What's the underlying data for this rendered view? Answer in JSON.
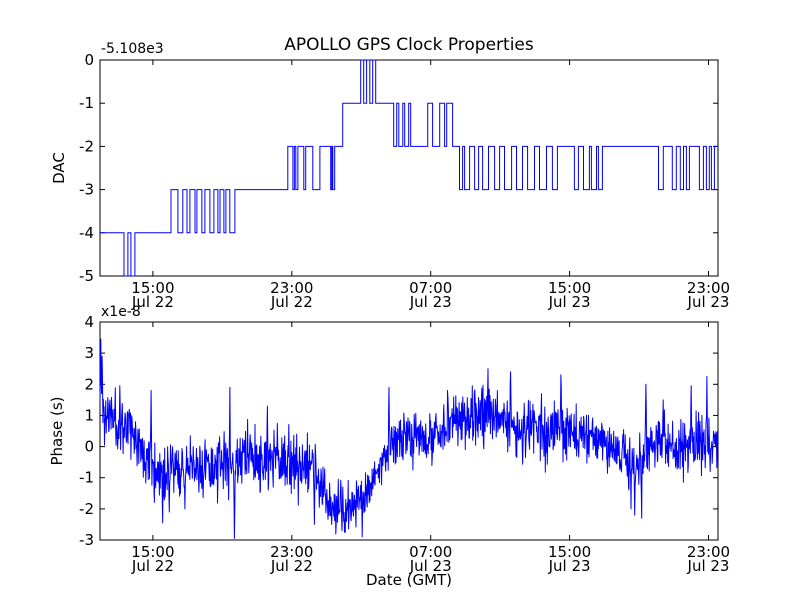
{
  "figure": {
    "background": "#ffffff",
    "axis_color": "#000000",
    "line_color": "#0000ff"
  },
  "chart_data": [
    {
      "type": "line",
      "subplot": "top",
      "title": "APOLLO GPS Clock Properties",
      "ylabel": "DAC",
      "y_offset_text": "-5.108e3",
      "line_style": "steps-post",
      "x_unit": "hours since Jul 22 00:00 GMT",
      "xlim": [
        11.95,
        47.55
      ],
      "ylim": [
        -5,
        0
      ],
      "yticks": [
        0,
        -1,
        -2,
        -3,
        -4,
        -5
      ],
      "xticks": [
        {
          "t": 15,
          "line1": "15:00",
          "line2": "Jul 22"
        },
        {
          "t": 23,
          "line1": "23:00",
          "line2": "Jul 22"
        },
        {
          "t": 31,
          "line1": "07:00",
          "line2": "Jul 23"
        },
        {
          "t": 39,
          "line1": "15:00",
          "line2": "Jul 23"
        },
        {
          "t": 47,
          "line1": "23:00",
          "line2": "Jul 23"
        }
      ],
      "steps": [
        [
          11.95,
          -4
        ],
        [
          13.33,
          -5
        ],
        [
          13.56,
          -4
        ],
        [
          13.73,
          -5
        ],
        [
          13.96,
          -4
        ],
        [
          16.04,
          -3
        ],
        [
          16.44,
          -4
        ],
        [
          16.72,
          -3
        ],
        [
          16.96,
          -4
        ],
        [
          17.13,
          -3
        ],
        [
          17.42,
          -4
        ],
        [
          17.53,
          -3
        ],
        [
          17.82,
          -4
        ],
        [
          17.99,
          -3
        ],
        [
          18.28,
          -4
        ],
        [
          18.51,
          -3
        ],
        [
          18.74,
          -4
        ],
        [
          18.86,
          -3
        ],
        [
          19.09,
          -4
        ],
        [
          19.2,
          -3
        ],
        [
          19.43,
          -4
        ],
        [
          19.72,
          -3
        ],
        [
          22.77,
          -2
        ],
        [
          23.06,
          -3
        ],
        [
          23.15,
          -2
        ],
        [
          23.23,
          -3
        ],
        [
          23.35,
          -2
        ],
        [
          23.69,
          -3
        ],
        [
          23.8,
          -2
        ],
        [
          24.21,
          -3
        ],
        [
          24.62,
          -2
        ],
        [
          25.24,
          -3
        ],
        [
          25.3,
          -2
        ],
        [
          25.36,
          -3
        ],
        [
          25.47,
          -2
        ],
        [
          25.93,
          -1
        ],
        [
          26.97,
          0
        ],
        [
          27.14,
          -1
        ],
        [
          27.31,
          0
        ],
        [
          27.49,
          -1
        ],
        [
          27.66,
          0
        ],
        [
          27.83,
          -1
        ],
        [
          28.87,
          -2
        ],
        [
          29.04,
          -1
        ],
        [
          29.16,
          -2
        ],
        [
          29.39,
          -1
        ],
        [
          29.5,
          -2
        ],
        [
          29.73,
          -1
        ],
        [
          29.85,
          -2
        ],
        [
          30.83,
          -1
        ],
        [
          31.11,
          -2
        ],
        [
          31.52,
          -1
        ],
        [
          31.8,
          -2
        ],
        [
          31.92,
          -1
        ],
        [
          32.26,
          -2
        ],
        [
          32.66,
          -3
        ],
        [
          32.84,
          -2
        ],
        [
          32.95,
          -3
        ],
        [
          33.24,
          -2
        ],
        [
          33.53,
          -3
        ],
        [
          33.76,
          -2
        ],
        [
          33.99,
          -3
        ],
        [
          34.33,
          -2
        ],
        [
          34.68,
          -3
        ],
        [
          34.97,
          -2
        ],
        [
          35.25,
          -3
        ],
        [
          35.66,
          -2
        ],
        [
          35.94,
          -3
        ],
        [
          36.29,
          -2
        ],
        [
          36.58,
          -3
        ],
        [
          36.98,
          -2
        ],
        [
          37.27,
          -3
        ],
        [
          37.67,
          -2
        ],
        [
          38.01,
          -3
        ],
        [
          38.3,
          -2
        ],
        [
          39.28,
          -3
        ],
        [
          39.51,
          -2
        ],
        [
          39.8,
          -3
        ],
        [
          40.14,
          -2
        ],
        [
          40.26,
          -3
        ],
        [
          40.55,
          -2
        ],
        [
          40.66,
          -3
        ],
        [
          40.89,
          -2
        ],
        [
          44.12,
          -3
        ],
        [
          44.4,
          -2
        ],
        [
          44.92,
          -3
        ],
        [
          45.15,
          -2
        ],
        [
          45.38,
          -3
        ],
        [
          45.56,
          -2
        ],
        [
          45.73,
          -3
        ],
        [
          45.9,
          -2
        ],
        [
          46.48,
          -3
        ],
        [
          46.71,
          -2
        ],
        [
          46.88,
          -3
        ],
        [
          47.05,
          -2
        ],
        [
          47.17,
          -3
        ],
        [
          47.34,
          -2
        ]
      ]
    },
    {
      "type": "line",
      "subplot": "bottom",
      "ylabel": "Phase (s)",
      "y_scale_text": "x1e-8",
      "xlabel": "Date (GMT)",
      "x_unit": "hours since Jul 22 00:00 GMT",
      "xlim": [
        11.95,
        47.55
      ],
      "ylim": [
        -3,
        4
      ],
      "yticks": [
        4,
        3,
        2,
        1,
        0,
        -1,
        -2,
        -3
      ],
      "xticks": [
        {
          "t": 15,
          "line1": "15:00",
          "line2": "Jul 22"
        },
        {
          "t": 23,
          "line1": "23:00",
          "line2": "Jul 22"
        },
        {
          "t": 31,
          "line1": "07:00",
          "line2": "Jul 23"
        },
        {
          "t": 39,
          "line1": "15:00",
          "line2": "Jul 23"
        },
        {
          "t": 47,
          "line1": "23:00",
          "line2": "Jul 23"
        }
      ],
      "trend": [
        [
          11.95,
          1.3,
          0.55
        ],
        [
          12.2,
          0.95,
          0.45
        ],
        [
          12.5,
          1.05,
          0.4
        ],
        [
          13.0,
          0.7,
          0.45
        ],
        [
          13.5,
          0.75,
          0.4
        ],
        [
          14.0,
          0.35,
          0.4
        ],
        [
          14.5,
          -0.15,
          0.4
        ],
        [
          15.0,
          -0.55,
          0.45
        ],
        [
          15.5,
          -0.9,
          0.55
        ],
        [
          16.0,
          -0.8,
          0.5
        ],
        [
          16.5,
          -0.65,
          0.45
        ],
        [
          17.0,
          -0.7,
          0.45
        ],
        [
          17.5,
          -0.75,
          0.5
        ],
        [
          18.0,
          -0.6,
          0.45
        ],
        [
          18.5,
          -0.7,
          0.5
        ],
        [
          19.0,
          -0.55,
          0.45
        ],
        [
          19.5,
          -0.6,
          0.5
        ],
        [
          20.0,
          -0.45,
          0.45
        ],
        [
          20.5,
          -0.3,
          0.45
        ],
        [
          21.0,
          -0.45,
          0.5
        ],
        [
          21.5,
          -0.5,
          0.45
        ],
        [
          22.0,
          -0.35,
          0.45
        ],
        [
          22.5,
          -0.45,
          0.5
        ],
        [
          23.0,
          -0.55,
          0.55
        ],
        [
          23.5,
          -0.55,
          0.5
        ],
        [
          24.0,
          -0.55,
          0.45
        ],
        [
          24.4,
          -0.85,
          0.45
        ],
        [
          24.8,
          -1.3,
          0.45
        ],
        [
          25.2,
          -1.7,
          0.45
        ],
        [
          25.6,
          -2.0,
          0.4
        ],
        [
          26.0,
          -2.1,
          0.4
        ],
        [
          26.4,
          -2.0,
          0.4
        ],
        [
          26.8,
          -1.75,
          0.4
        ],
        [
          27.2,
          -1.55,
          0.4
        ],
        [
          27.6,
          -1.1,
          0.4
        ],
        [
          28.0,
          -0.6,
          0.4
        ],
        [
          28.4,
          -0.2,
          0.4
        ],
        [
          28.8,
          0.15,
          0.4
        ],
        [
          29.2,
          0.3,
          0.4
        ],
        [
          29.6,
          0.25,
          0.4
        ],
        [
          30.0,
          0.2,
          0.4
        ],
        [
          30.5,
          0.3,
          0.4
        ],
        [
          31.0,
          0.25,
          0.45
        ],
        [
          31.5,
          0.4,
          0.45
        ],
        [
          32.0,
          0.55,
          0.45
        ],
        [
          32.5,
          0.8,
          0.45
        ],
        [
          33.0,
          1.0,
          0.45
        ],
        [
          33.5,
          1.05,
          0.5
        ],
        [
          34.0,
          0.95,
          0.5
        ],
        [
          34.5,
          1.0,
          0.45
        ],
        [
          35.0,
          0.8,
          0.45
        ],
        [
          35.5,
          0.7,
          0.45
        ],
        [
          36.0,
          0.7,
          0.45
        ],
        [
          36.5,
          0.55,
          0.45
        ],
        [
          37.0,
          0.6,
          0.4
        ],
        [
          37.5,
          0.5,
          0.4
        ],
        [
          38.0,
          0.55,
          0.4
        ],
        [
          38.5,
          0.55,
          0.45
        ],
        [
          39.0,
          0.45,
          0.4
        ],
        [
          39.5,
          0.3,
          0.4
        ],
        [
          40.0,
          0.2,
          0.4
        ],
        [
          40.5,
          0.25,
          0.4
        ],
        [
          41.0,
          0.05,
          0.4
        ],
        [
          41.5,
          -0.1,
          0.4
        ],
        [
          42.0,
          -0.3,
          0.45
        ],
        [
          42.5,
          -0.5,
          0.5
        ],
        [
          43.0,
          -0.4,
          0.45
        ],
        [
          43.4,
          -0.1,
          0.4
        ],
        [
          43.8,
          0.0,
          0.4
        ],
        [
          44.2,
          0.1,
          0.4
        ],
        [
          44.6,
          0.05,
          0.4
        ],
        [
          45.0,
          0.0,
          0.4
        ],
        [
          45.4,
          0.05,
          0.45
        ],
        [
          45.8,
          0.1,
          0.45
        ],
        [
          46.2,
          0.0,
          0.45
        ],
        [
          46.6,
          0.1,
          0.45
        ],
        [
          47.0,
          0.2,
          0.45
        ],
        [
          47.55,
          0.15,
          0.45
        ]
      ],
      "spikes": [
        [
          12.0,
          3.45
        ],
        [
          12.07,
          2.9
        ],
        [
          13.1,
          1.95
        ],
        [
          14.9,
          1.8
        ],
        [
          15.55,
          -2.45
        ],
        [
          15.95,
          -2.1
        ],
        [
          16.84,
          -2.0
        ],
        [
          19.43,
          1.9
        ],
        [
          19.7,
          -2.95
        ],
        [
          21.6,
          1.3
        ],
        [
          24.3,
          -2.5
        ],
        [
          25.3,
          -2.5
        ],
        [
          25.9,
          -2.7
        ],
        [
          27.05,
          -2.9
        ],
        [
          28.6,
          1.9
        ],
        [
          34.3,
          2.5
        ],
        [
          35.6,
          2.4
        ],
        [
          38.5,
          2.3
        ],
        [
          42.55,
          -2.0
        ],
        [
          42.75,
          -2.2
        ],
        [
          43.15,
          -2.3
        ],
        [
          43.4,
          2.0
        ],
        [
          44.4,
          1.5
        ],
        [
          46.0,
          1.95
        ],
        [
          46.9,
          2.25
        ]
      ],
      "noise": {
        "seed": 11,
        "points": 1500
      }
    }
  ]
}
